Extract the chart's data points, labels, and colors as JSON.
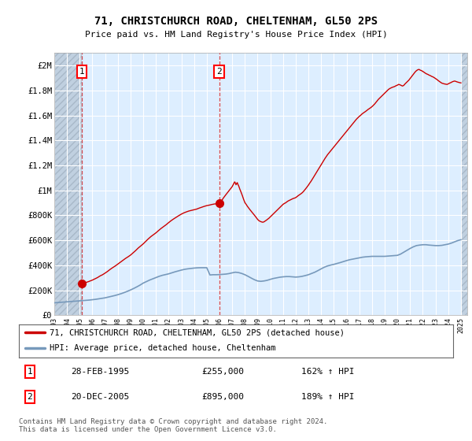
{
  "title": "71, CHRISTCHURCH ROAD, CHELTENHAM, GL50 2PS",
  "subtitle": "Price paid vs. HM Land Registry's House Price Index (HPI)",
  "ylabel_values": [
    "£0",
    "£200K",
    "£400K",
    "£600K",
    "£800K",
    "£1M",
    "£1.2M",
    "£1.4M",
    "£1.6M",
    "£1.8M",
    "£2M"
  ],
  "yticks": [
    0,
    200000,
    400000,
    600000,
    800000,
    1000000,
    1200000,
    1400000,
    1600000,
    1800000,
    2000000
  ],
  "ylim": [
    0,
    2100000
  ],
  "xlim_start": 1993.0,
  "xlim_end": 2025.5,
  "xticks": [
    1993,
    1994,
    1995,
    1996,
    1997,
    1998,
    1999,
    2000,
    2001,
    2002,
    2003,
    2004,
    2005,
    2006,
    2007,
    2008,
    2009,
    2010,
    2011,
    2012,
    2013,
    2014,
    2015,
    2016,
    2017,
    2018,
    2019,
    2020,
    2021,
    2022,
    2023,
    2024,
    2025
  ],
  "background_color": "#ffffff",
  "plot_bg_color": "#ddeeff",
  "grid_color": "#ffffff",
  "red_line_color": "#cc0000",
  "blue_line_color": "#7799bb",
  "marker1_x": 1995.15,
  "marker1_y": 255000,
  "marker2_x": 2005.97,
  "marker2_y": 895000,
  "purchase1_date": "28-FEB-1995",
  "purchase1_price": "£255,000",
  "purchase1_hpi": "162% ↑ HPI",
  "purchase2_date": "20-DEC-2005",
  "purchase2_price": "£895,000",
  "purchase2_hpi": "189% ↑ HPI",
  "legend_line1": "71, CHRISTCHURCH ROAD, CHELTENHAM, GL50 2PS (detached house)",
  "legend_line2": "HPI: Average price, detached house, Cheltenham",
  "footer": "Contains HM Land Registry data © Crown copyright and database right 2024.\nThis data is licensed under the Open Government Licence v3.0.",
  "hatch_left_end": 1995.15,
  "hatch_right_start": 2025.0
}
